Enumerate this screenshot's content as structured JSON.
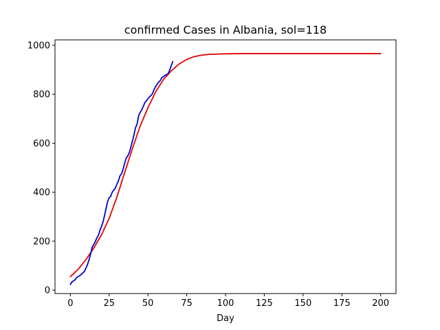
{
  "chart_data": {
    "type": "line",
    "title": "confirmed Cases in Albania, sol=118",
    "xlabel": "Day",
    "ylabel": "",
    "xlim": [
      -9.9,
      209.9
    ],
    "ylim": [
      -14,
      1022
    ],
    "xticks": [
      0,
      25,
      50,
      75,
      100,
      125,
      150,
      175,
      200
    ],
    "yticks": [
      0,
      200,
      400,
      600,
      800,
      1000
    ],
    "grid": false,
    "series": [
      {
        "kind": "fit",
        "color": "#e30000",
        "x": [
          0,
          5,
          10,
          15,
          20,
          25,
          30,
          35,
          40,
          45,
          50,
          55,
          60,
          65,
          70,
          75,
          80,
          85,
          90,
          100,
          110,
          125,
          150,
          175,
          200
        ],
        "values": [
          55,
          85,
          124,
          171,
          225,
          293,
          380,
          480,
          578,
          670,
          745,
          810,
          860,
          895,
          923,
          942,
          954,
          960,
          963,
          965,
          966,
          966,
          966,
          966,
          966
        ]
      },
      {
        "kind": "data",
        "color": "#0000cc",
        "x": [
          0,
          1,
          2,
          3,
          4,
          5,
          6,
          7,
          8,
          9,
          10,
          11,
          12,
          13,
          14,
          15,
          16,
          17,
          18,
          19,
          20,
          21,
          22,
          23,
          24,
          25,
          26,
          27,
          28,
          29,
          30,
          31,
          32,
          33,
          34,
          35,
          36,
          37,
          38,
          39,
          40,
          41,
          42,
          43,
          44,
          45,
          46,
          47,
          48,
          49,
          50,
          51,
          52,
          53,
          54,
          55,
          56,
          57,
          58,
          59,
          60,
          61,
          62,
          63,
          64,
          65,
          66
        ],
        "values": [
          23,
          33,
          38,
          42,
          51,
          55,
          59,
          64,
          70,
          76,
          89,
          104,
          123,
          146,
          174,
          186,
          197,
          212,
          223,
          243,
          259,
          277,
          304,
          333,
          361,
          377,
          383,
          400,
          409,
          416,
          433,
          446,
          467,
          475,
          494,
          518,
          539,
          548,
          562,
          584,
          609,
          634,
          663,
          678,
          712,
          726,
          736,
          750,
          766,
          773,
          782,
          789,
          795,
          803,
          820,
          832,
          842,
          850,
          856,
          868,
          872,
          877,
          880,
          884,
          898,
          916,
          933
        ]
      }
    ]
  }
}
